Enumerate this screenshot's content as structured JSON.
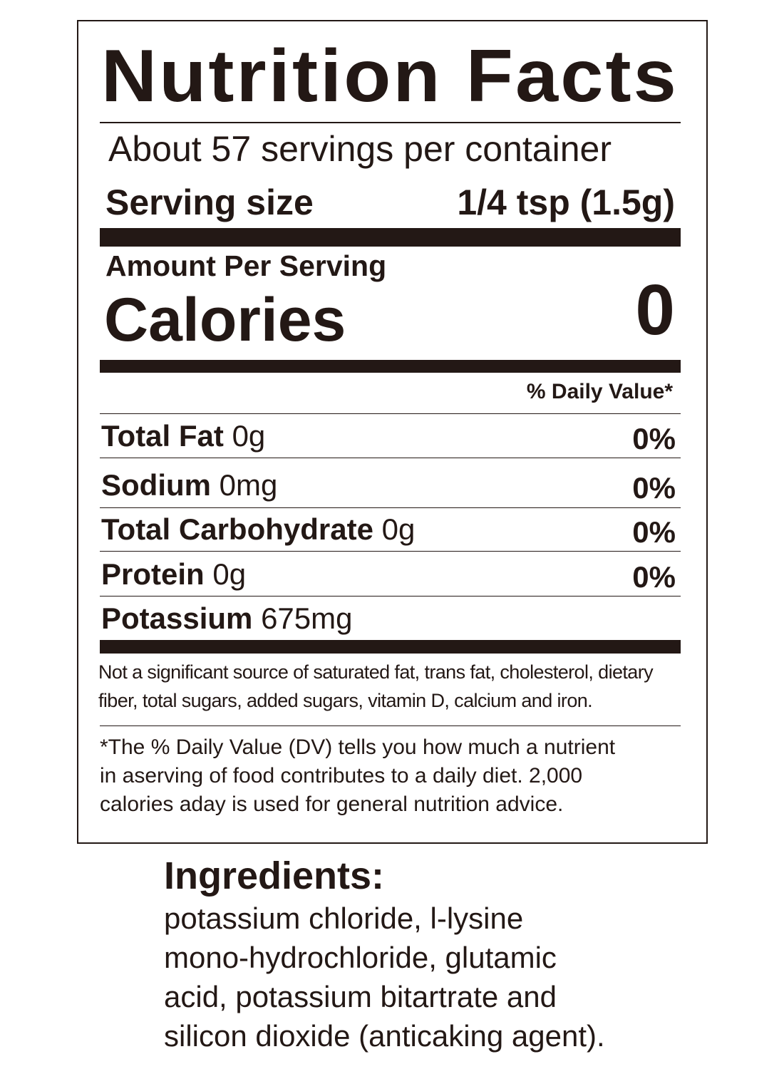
{
  "label": {
    "title": "Nutrition Facts",
    "servings_per_container": "About 57 servings per container",
    "serving_size_label": "Serving size",
    "serving_size_value": "1/4 tsp (1.5g)",
    "amount_per_serving": "Amount Per Serving",
    "calories_label": "Calories",
    "calories_value": "0",
    "daily_value_header": "% Daily Value*",
    "nutrients": [
      {
        "name": "Total Fat",
        "amount": "0g",
        "dv": "0%"
      },
      {
        "name": "Sodium",
        "amount": "0mg",
        "dv": "0%"
      },
      {
        "name": "Total Carbohydrate",
        "amount": "0g",
        "dv": "0%"
      },
      {
        "name": "Protein",
        "amount": "0g",
        "dv": "0%"
      },
      {
        "name": "Potassium",
        "amount": "675mg",
        "dv": ""
      }
    ],
    "footnote_lines": [
      "Not a significant source of saturated fat, trans fat, cholesterol, dietary",
      "fiber, total sugars, added sugars, vitamin D, calcium and iron."
    ],
    "dv_note_lines": [
      "*The % Daily Value (DV) tells you how much a nutrient",
      "in aserving of food contributes to a daily diet. 2,000",
      "calories aday is used for general nutrition advice."
    ]
  },
  "ingredients": {
    "heading": "Ingredients:",
    "lines": [
      "potassium chloride, l-lysine",
      "mono-hydrochloride, glutamic",
      "acid, potassium bitartrate and",
      "silicon dioxide (anticaking agent)."
    ]
  }
}
